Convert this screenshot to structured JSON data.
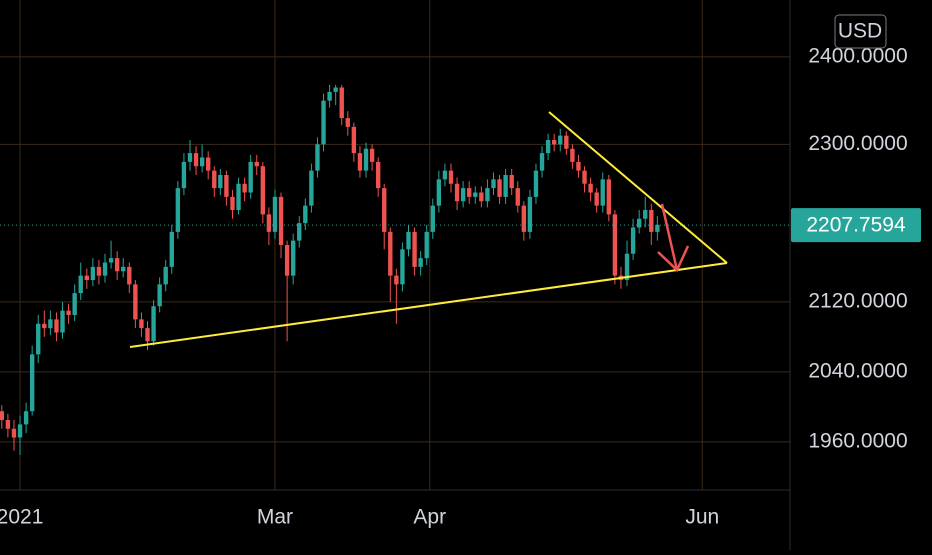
{
  "chart_data": {
    "type": "candlestick",
    "currency": "USD",
    "x": [
      -3,
      -2,
      -1,
      0,
      1,
      2,
      3,
      4,
      5,
      6,
      7,
      8,
      9,
      10,
      11,
      12,
      13,
      14,
      15,
      16,
      17,
      18,
      19,
      20,
      21,
      22,
      23,
      24,
      25,
      26,
      27,
      28,
      29,
      30,
      31,
      32,
      33,
      34,
      35,
      36,
      37,
      38,
      39,
      40,
      41,
      42,
      43,
      44,
      45,
      46,
      47,
      48,
      49,
      50,
      51,
      52,
      53,
      54,
      55,
      56,
      57,
      58,
      59,
      60,
      61,
      62,
      63,
      64,
      65,
      66,
      67,
      68,
      69,
      70,
      71,
      72,
      73,
      74,
      75,
      76,
      77,
      78,
      79,
      80,
      81,
      82,
      83,
      84,
      85,
      86,
      87,
      88,
      89,
      90,
      91,
      92,
      93,
      94,
      95,
      96,
      97,
      98,
      99,
      100,
      101,
      102,
      103,
      104,
      105
    ],
    "open": [
      1995,
      1985,
      1975,
      1965,
      1980,
      1995,
      2060,
      2095,
      2090,
      2100,
      2085,
      2110,
      2105,
      2130,
      2150,
      2145,
      2160,
      2150,
      2165,
      2170,
      2155,
      2160,
      2140,
      2100,
      2090,
      2075,
      2115,
      2140,
      2160,
      2200,
      2250,
      2280,
      2290,
      2275,
      2285,
      2270,
      2250,
      2265,
      2240,
      2225,
      2255,
      2245,
      2280,
      2275,
      2220,
      2200,
      2240,
      2185,
      2150,
      2190,
      2210,
      2230,
      2270,
      2300,
      2350,
      2360,
      2365,
      2330,
      2320,
      2290,
      2270,
      2295,
      2280,
      2250,
      2200,
      2150,
      2140,
      2180,
      2200,
      2160,
      2170,
      2200,
      2230,
      2260,
      2270,
      2255,
      2235,
      2250,
      2240,
      2245,
      2235,
      2250,
      2260,
      2240,
      2265,
      2250,
      2230,
      2200,
      2240,
      2270,
      2290,
      2305,
      2300,
      2310,
      2295,
      2280,
      2270,
      2255,
      2245,
      2230,
      2260,
      2220,
      2150,
      2145,
      2175,
      2205,
      2215,
      2225,
      2200
    ],
    "high": [
      2002,
      1992,
      1985,
      1990,
      2005,
      2070,
      2105,
      2110,
      2110,
      2108,
      2120,
      2118,
      2140,
      2165,
      2158,
      2170,
      2168,
      2175,
      2190,
      2178,
      2170,
      2165,
      2145,
      2108,
      2098,
      2122,
      2148,
      2168,
      2208,
      2258,
      2290,
      2305,
      2298,
      2300,
      2292,
      2275,
      2272,
      2270,
      2248,
      2262,
      2262,
      2288,
      2288,
      2280,
      2228,
      2248,
      2245,
      2190,
      2198,
      2218,
      2238,
      2278,
      2308,
      2358,
      2368,
      2368,
      2368,
      2338,
      2325,
      2298,
      2302,
      2300,
      2285,
      2255,
      2205,
      2158,
      2188,
      2208,
      2205,
      2178,
      2208,
      2238,
      2270,
      2278,
      2278,
      2262,
      2258,
      2258,
      2252,
      2252,
      2260,
      2268,
      2265,
      2272,
      2272,
      2258,
      2235,
      2248,
      2278,
      2298,
      2312,
      2312,
      2318,
      2315,
      2300,
      2288,
      2275,
      2262,
      2250,
      2268,
      2265,
      2225,
      2160,
      2190,
      2215,
      2225,
      2240,
      2232,
      2218
    ],
    "low": [
      1975,
      1965,
      1950,
      1945,
      1970,
      1990,
      2050,
      2080,
      2082,
      2075,
      2078,
      2095,
      2098,
      2122,
      2135,
      2138,
      2140,
      2142,
      2158,
      2145,
      2148,
      2130,
      2090,
      2080,
      2065,
      2070,
      2108,
      2132,
      2152,
      2192,
      2242,
      2270,
      2265,
      2268,
      2260,
      2240,
      2242,
      2230,
      2215,
      2220,
      2235,
      2238,
      2265,
      2210,
      2185,
      2192,
      2170,
      2075,
      2140,
      2182,
      2202,
      2222,
      2262,
      2292,
      2342,
      2345,
      2322,
      2310,
      2280,
      2262,
      2262,
      2270,
      2240,
      2180,
      2120,
      2095,
      2132,
      2172,
      2150,
      2150,
      2162,
      2192,
      2222,
      2252,
      2245,
      2225,
      2228,
      2232,
      2232,
      2228,
      2228,
      2242,
      2232,
      2232,
      2242,
      2222,
      2190,
      2192,
      2232,
      2262,
      2282,
      2292,
      2292,
      2288,
      2272,
      2262,
      2245,
      2235,
      2222,
      2222,
      2212,
      2140,
      2135,
      2138,
      2168,
      2198,
      2205,
      2185,
      2190
    ],
    "close": [
      1985,
      1975,
      1965,
      1980,
      1995,
      2060,
      2095,
      2090,
      2100,
      2085,
      2110,
      2105,
      2130,
      2150,
      2145,
      2160,
      2150,
      2165,
      2170,
      2155,
      2160,
      2140,
      2100,
      2090,
      2075,
      2115,
      2140,
      2160,
      2200,
      2250,
      2280,
      2290,
      2275,
      2285,
      2270,
      2250,
      2265,
      2240,
      2225,
      2255,
      2245,
      2280,
      2275,
      2220,
      2200,
      2240,
      2185,
      2150,
      2190,
      2210,
      2230,
      2270,
      2300,
      2350,
      2360,
      2365,
      2330,
      2320,
      2290,
      2270,
      2295,
      2280,
      2250,
      2200,
      2150,
      2140,
      2180,
      2200,
      2160,
      2170,
      2200,
      2230,
      2260,
      2270,
      2255,
      2235,
      2250,
      2240,
      2245,
      2235,
      2250,
      2260,
      2240,
      2265,
      2250,
      2230,
      2200,
      2240,
      2270,
      2290,
      2305,
      2300,
      2310,
      2295,
      2280,
      2270,
      2255,
      2245,
      2230,
      2260,
      2220,
      2150,
      2145,
      2175,
      2205,
      2215,
      2225,
      2200,
      2208
    ],
    "up_color": "#26a69a",
    "down_color": "#ef5350",
    "xlim": [
      -3.3,
      126.85
    ],
    "xticks": [
      {
        "value": 0,
        "label": "2021"
      },
      {
        "value": 42,
        "label": "Mar"
      },
      {
        "value": 67.5,
        "label": "Apr"
      },
      {
        "value": 112.4,
        "label": "Jun"
      }
    ],
    "ylim": [
      1905,
      2465
    ],
    "yticks": [
      {
        "value": 1960,
        "label": "1960.0000"
      },
      {
        "value": 2040,
        "label": "2040.0000"
      },
      {
        "value": 2120,
        "label": "2120.0000"
      },
      {
        "value": 2300,
        "label": "2300.0000"
      },
      {
        "value": 2400,
        "label": "2400.0000"
      }
    ],
    "last_price": 2207.7594,
    "grid": true
  }
}
